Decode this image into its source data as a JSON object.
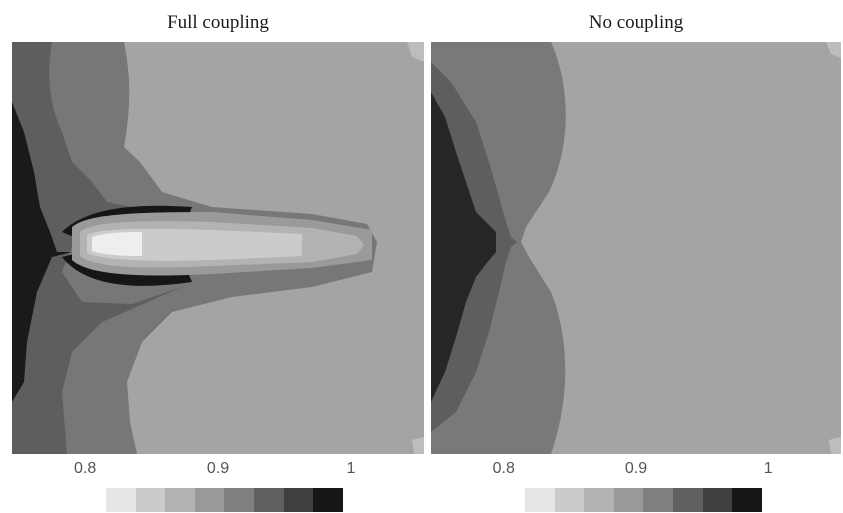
{
  "chart_data": [
    {
      "type": "heatmap",
      "title": "Full coupling",
      "x_ticks": [
        "0.8",
        "0.9",
        "1"
      ],
      "x_tick_values": [
        0.8,
        0.9,
        1.0
      ],
      "xlim": [
        0.745,
        1.055
      ],
      "colorbar_levels": 8,
      "colorbar_colors": [
        "#e6e6e6",
        "#cbcbcb",
        "#b2b2b2",
        "#999999",
        "#7f7f7f",
        "#606060",
        "#404040",
        "#161616"
      ],
      "field_description": "filled contour field"
    },
    {
      "type": "heatmap",
      "title": "No coupling",
      "x_ticks": [
        "0.8",
        "0.9",
        "1"
      ],
      "x_tick_values": [
        0.8,
        0.9,
        1.0
      ],
      "xlim": [
        0.745,
        1.055
      ],
      "colorbar_levels": 8,
      "colorbar_colors": [
        "#e6e6e6",
        "#cbcbcb",
        "#b2b2b2",
        "#999999",
        "#7f7f7f",
        "#606060",
        "#404040",
        "#161616"
      ],
      "field_description": "filled contour field"
    }
  ]
}
